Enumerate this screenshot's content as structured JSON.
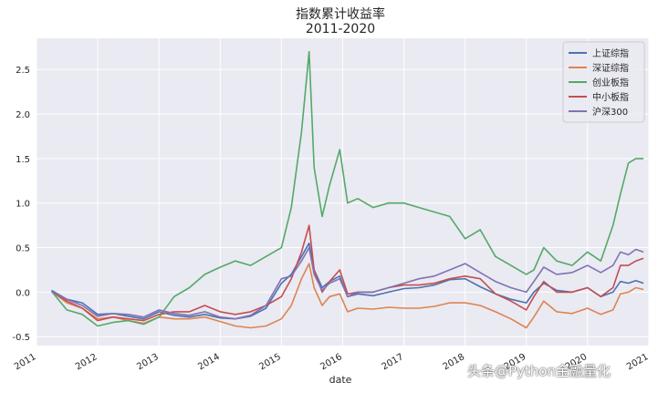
{
  "chart_data": {
    "type": "line",
    "title": "指数累计收益率",
    "subtitle": "2011-2020",
    "xlabel": "date",
    "ylabel": "",
    "ylim": [
      -0.6,
      2.85
    ],
    "xlim": [
      "2011-01-01",
      "2021-01-01"
    ],
    "yticks": [
      -0.5,
      0.0,
      0.5,
      1.0,
      1.5,
      2.0,
      2.5
    ],
    "ytick_labels": [
      "-0.5",
      "0.0",
      "0.5",
      "1.0",
      "1.5",
      "2.0",
      "2.5"
    ],
    "xticks": [
      "2011-01-01",
      "2012-01-01",
      "2013-01-01",
      "2014-01-01",
      "2015-01-01",
      "2016-01-01",
      "2017-01-01",
      "2018-01-01",
      "2019-01-01",
      "2020-01-01",
      "2021-01-01"
    ],
    "xtick_labels": [
      "2011",
      "2012",
      "2013",
      "2014",
      "2015",
      "2016",
      "2017",
      "2018",
      "2019",
      "2020",
      "2021"
    ],
    "grid": true,
    "legend_position": "top-right",
    "x": [
      "2011-04-01",
      "2011-07-01",
      "2011-10-01",
      "2012-01-01",
      "2012-04-01",
      "2012-07-01",
      "2012-10-01",
      "2013-01-01",
      "2013-04-01",
      "2013-07-01",
      "2013-10-01",
      "2014-01-01",
      "2014-04-01",
      "2014-07-01",
      "2014-10-01",
      "2015-01-01",
      "2015-03-01",
      "2015-05-01",
      "2015-06-15",
      "2015-07-15",
      "2015-09-01",
      "2015-10-15",
      "2015-12-15",
      "2016-01-31",
      "2016-04-01",
      "2016-07-01",
      "2016-10-01",
      "2017-01-01",
      "2017-04-01",
      "2017-07-01",
      "2017-10-01",
      "2018-01-01",
      "2018-04-01",
      "2018-07-01",
      "2018-10-01",
      "2019-01-01",
      "2019-02-15",
      "2019-04-15",
      "2019-07-01",
      "2019-10-01",
      "2020-01-01",
      "2020-03-20",
      "2020-06-01",
      "2020-07-15",
      "2020-09-01",
      "2020-10-15",
      "2020-11-30"
    ],
    "series": [
      {
        "name": "上证综指",
        "color": "#4c72b0",
        "values": [
          0.02,
          -0.08,
          -0.12,
          -0.25,
          -0.24,
          -0.27,
          -0.3,
          -0.22,
          -0.26,
          -0.28,
          -0.25,
          -0.29,
          -0.3,
          -0.27,
          -0.18,
          0.1,
          0.2,
          0.4,
          0.55,
          0.25,
          0.05,
          0.12,
          0.18,
          -0.05,
          -0.02,
          -0.04,
          0.0,
          0.04,
          0.05,
          0.08,
          0.14,
          0.15,
          0.06,
          -0.02,
          -0.08,
          -0.12,
          0.0,
          0.1,
          0.02,
          0.0,
          0.05,
          -0.05,
          0.0,
          0.12,
          0.1,
          0.13,
          0.1
        ]
      },
      {
        "name": "深证综指",
        "color": "#dd8452",
        "values": [
          0.01,
          -0.12,
          -0.18,
          -0.3,
          -0.28,
          -0.32,
          -0.35,
          -0.28,
          -0.3,
          -0.3,
          -0.28,
          -0.33,
          -0.38,
          -0.4,
          -0.38,
          -0.3,
          -0.15,
          0.15,
          0.32,
          0.05,
          -0.15,
          -0.05,
          -0.02,
          -0.22,
          -0.18,
          -0.19,
          -0.17,
          -0.18,
          -0.18,
          -0.16,
          -0.12,
          -0.12,
          -0.15,
          -0.22,
          -0.3,
          -0.4,
          -0.28,
          -0.1,
          -0.22,
          -0.24,
          -0.18,
          -0.25,
          -0.2,
          -0.02,
          0.0,
          0.05,
          0.03
        ]
      },
      {
        "name": "创业板指",
        "color": "#55a868",
        "values": [
          0.01,
          -0.2,
          -0.25,
          -0.38,
          -0.34,
          -0.32,
          -0.36,
          -0.28,
          -0.05,
          0.05,
          0.2,
          0.28,
          0.35,
          0.3,
          0.4,
          0.5,
          0.95,
          1.8,
          2.7,
          1.4,
          0.85,
          1.2,
          1.6,
          1.0,
          1.05,
          0.95,
          1.0,
          1.0,
          0.95,
          0.9,
          0.85,
          0.6,
          0.7,
          0.4,
          0.3,
          0.2,
          0.25,
          0.5,
          0.35,
          0.3,
          0.45,
          0.35,
          0.75,
          1.1,
          1.45,
          1.5,
          1.5
        ]
      },
      {
        "name": "中小板指",
        "color": "#c44e52",
        "values": [
          0.01,
          -0.1,
          -0.18,
          -0.32,
          -0.28,
          -0.3,
          -0.32,
          -0.25,
          -0.22,
          -0.22,
          -0.15,
          -0.22,
          -0.25,
          -0.22,
          -0.15,
          -0.05,
          0.15,
          0.45,
          0.75,
          0.25,
          0.0,
          0.12,
          0.25,
          -0.02,
          0.0,
          0.0,
          0.05,
          0.08,
          0.08,
          0.1,
          0.15,
          0.18,
          0.15,
          -0.02,
          -0.1,
          -0.2,
          -0.05,
          0.12,
          0.0,
          0.0,
          0.05,
          -0.05,
          0.05,
          0.3,
          0.3,
          0.35,
          0.38
        ]
      },
      {
        "name": "沪深300",
        "color": "#8172b3",
        "values": [
          0.01,
          -0.08,
          -0.15,
          -0.27,
          -0.24,
          -0.25,
          -0.28,
          -0.2,
          -0.24,
          -0.26,
          -0.22,
          -0.28,
          -0.3,
          -0.26,
          -0.15,
          0.15,
          0.18,
          0.35,
          0.5,
          0.2,
          0.02,
          0.1,
          0.15,
          -0.05,
          0.0,
          0.0,
          0.05,
          0.1,
          0.15,
          0.18,
          0.25,
          0.32,
          0.22,
          0.12,
          0.05,
          0.0,
          0.12,
          0.28,
          0.2,
          0.22,
          0.3,
          0.22,
          0.3,
          0.45,
          0.42,
          0.48,
          0.45
        ]
      }
    ]
  },
  "watermark": "头条@Python金融量化"
}
